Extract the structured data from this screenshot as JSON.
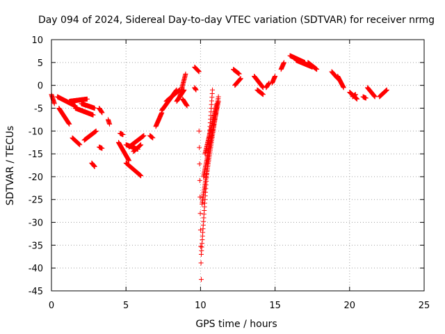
{
  "chart_data": {
    "type": "scatter",
    "title": "Day 094 of 2024, Sidereal Day-to-day VTEC variation (SDTVAR) for receiver nrmg",
    "xlabel": "GPS time / hours",
    "ylabel": "SDTVAR / TECUs",
    "xlim": [
      0,
      25
    ],
    "ylim": [
      -45,
      10
    ],
    "xticks": [
      0,
      5,
      10,
      15,
      20,
      25
    ],
    "yticks": [
      10,
      5,
      0,
      -5,
      -10,
      -15,
      -20,
      -25,
      -30,
      -35,
      -40,
      -45
    ],
    "grid": true,
    "marker": "+",
    "color": "#ff0000",
    "segments": [
      {
        "t0": 0.0,
        "t1": 0.2,
        "v0": -2.0,
        "v1": -4.0
      },
      {
        "t0": 0.4,
        "t1": 1.6,
        "v0": -2.5,
        "v1": -4.5
      },
      {
        "t0": 0.5,
        "t1": 1.2,
        "v0": -5.0,
        "v1": -8.5
      },
      {
        "t0": 1.2,
        "t1": 2.4,
        "v0": -3.5,
        "v1": -3.0
      },
      {
        "t0": 1.6,
        "t1": 2.8,
        "v0": -5.0,
        "v1": -6.5
      },
      {
        "t0": 2.0,
        "t1": 2.9,
        "v0": -4.0,
        "v1": -5.0
      },
      {
        "t0": 1.4,
        "t1": 1.9,
        "v0": -11.5,
        "v1": -13.0
      },
      {
        "t0": 2.2,
        "t1": 3.0,
        "v0": -12.0,
        "v1": -10.0
      },
      {
        "t0": 2.7,
        "t1": 2.9,
        "v0": -17.0,
        "v1": -17.8
      },
      {
        "t0": 3.2,
        "t1": 3.4,
        "v0": -5.0,
        "v1": -6.0
      },
      {
        "t0": 3.2,
        "t1": 3.4,
        "v0": -13.5,
        "v1": -13.8
      },
      {
        "t0": 3.8,
        "t1": 3.9,
        "v0": -7.5,
        "v1": -8.5
      },
      {
        "t0": 4.6,
        "t1": 4.8,
        "v0": -10.5,
        "v1": -10.8
      },
      {
        "t0": 4.5,
        "t1": 5.2,
        "v0": -12.5,
        "v1": -16.5
      },
      {
        "t0": 5.0,
        "t1": 6.0,
        "v0": -17.0,
        "v1": -19.8
      },
      {
        "t0": 5.0,
        "t1": 5.8,
        "v0": -13.0,
        "v1": -14.0
      },
      {
        "t0": 5.2,
        "t1": 6.2,
        "v0": -13.5,
        "v1": -11.0
      },
      {
        "t0": 5.5,
        "t1": 6.0,
        "v0": -14.5,
        "v1": -13.0
      },
      {
        "t0": 6.6,
        "t1": 6.8,
        "v0": -11.0,
        "v1": -11.5
      },
      {
        "t0": 7.0,
        "t1": 7.4,
        "v0": -9.0,
        "v1": -6.0
      },
      {
        "t0": 7.4,
        "t1": 8.4,
        "v0": -5.5,
        "v1": -1.0
      },
      {
        "t0": 7.7,
        "t1": 8.6,
        "v0": -3.5,
        "v1": -1.0
      },
      {
        "t0": 8.4,
        "t1": 8.9,
        "v0": -3.5,
        "v1": -1.0
      },
      {
        "t0": 8.6,
        "t1": 9.0,
        "v0": -2.5,
        "v1": 2.5
      },
      {
        "t0": 8.8,
        "t1": 9.1,
        "v0": -3.0,
        "v1": -4.5
      },
      {
        "t0": 9.6,
        "t1": 9.9,
        "v0": 4.0,
        "v1": 3.0
      },
      {
        "t0": 9.6,
        "t1": 9.7,
        "v0": -0.5,
        "v1": -1.0
      },
      {
        "t0": 9.9,
        "t1": 10.05,
        "v0": -10.0,
        "v1": -42.5
      },
      {
        "t0": 10.05,
        "t1": 10.8,
        "v0": -37.0,
        "v1": -1.0
      },
      {
        "t0": 10.1,
        "t1": 11.2,
        "v0": -26.0,
        "v1": -2.5
      },
      {
        "t0": 10.2,
        "t1": 11.2,
        "v0": -20.0,
        "v1": -3.5
      },
      {
        "t0": 10.3,
        "t1": 11.1,
        "v0": -15.0,
        "v1": -4.0
      },
      {
        "t0": 12.2,
        "t1": 12.6,
        "v0": 3.5,
        "v1": 2.5
      },
      {
        "t0": 12.3,
        "t1": 12.7,
        "v0": 0.0,
        "v1": 1.5
      },
      {
        "t0": 13.6,
        "t1": 14.2,
        "v0": 2.0,
        "v1": -0.5
      },
      {
        "t0": 13.8,
        "t1": 14.2,
        "v0": -1.0,
        "v1": -2.0
      },
      {
        "t0": 14.4,
        "t1": 14.6,
        "v0": -0.5,
        "v1": 0.5
      },
      {
        "t0": 14.8,
        "t1": 15.0,
        "v0": 0.5,
        "v1": 2.0
      },
      {
        "t0": 15.4,
        "t1": 15.6,
        "v0": 3.5,
        "v1": 5.0
      },
      {
        "t0": 16.0,
        "t1": 17.0,
        "v0": 6.5,
        "v1": 5.0
      },
      {
        "t0": 16.4,
        "t1": 17.5,
        "v0": 5.5,
        "v1": 4.0
      },
      {
        "t0": 17.2,
        "t1": 17.8,
        "v0": 5.0,
        "v1": 3.5
      },
      {
        "t0": 18.8,
        "t1": 19.2,
        "v0": 3.0,
        "v1": 1.5
      },
      {
        "t0": 19.2,
        "t1": 19.6,
        "v0": 2.0,
        "v1": -0.5
      },
      {
        "t0": 20.0,
        "t1": 20.5,
        "v0": -1.5,
        "v1": -3.0
      },
      {
        "t0": 20.2,
        "t1": 20.4,
        "v0": -2.5,
        "v1": -2.0
      },
      {
        "t0": 20.9,
        "t1": 21.1,
        "v0": -2.5,
        "v1": -2.8
      },
      {
        "t0": 21.2,
        "t1": 21.7,
        "v0": -0.5,
        "v1": -2.5
      },
      {
        "t0": 22.0,
        "t1": 22.5,
        "v0": -2.5,
        "v1": -1.0
      }
    ]
  }
}
